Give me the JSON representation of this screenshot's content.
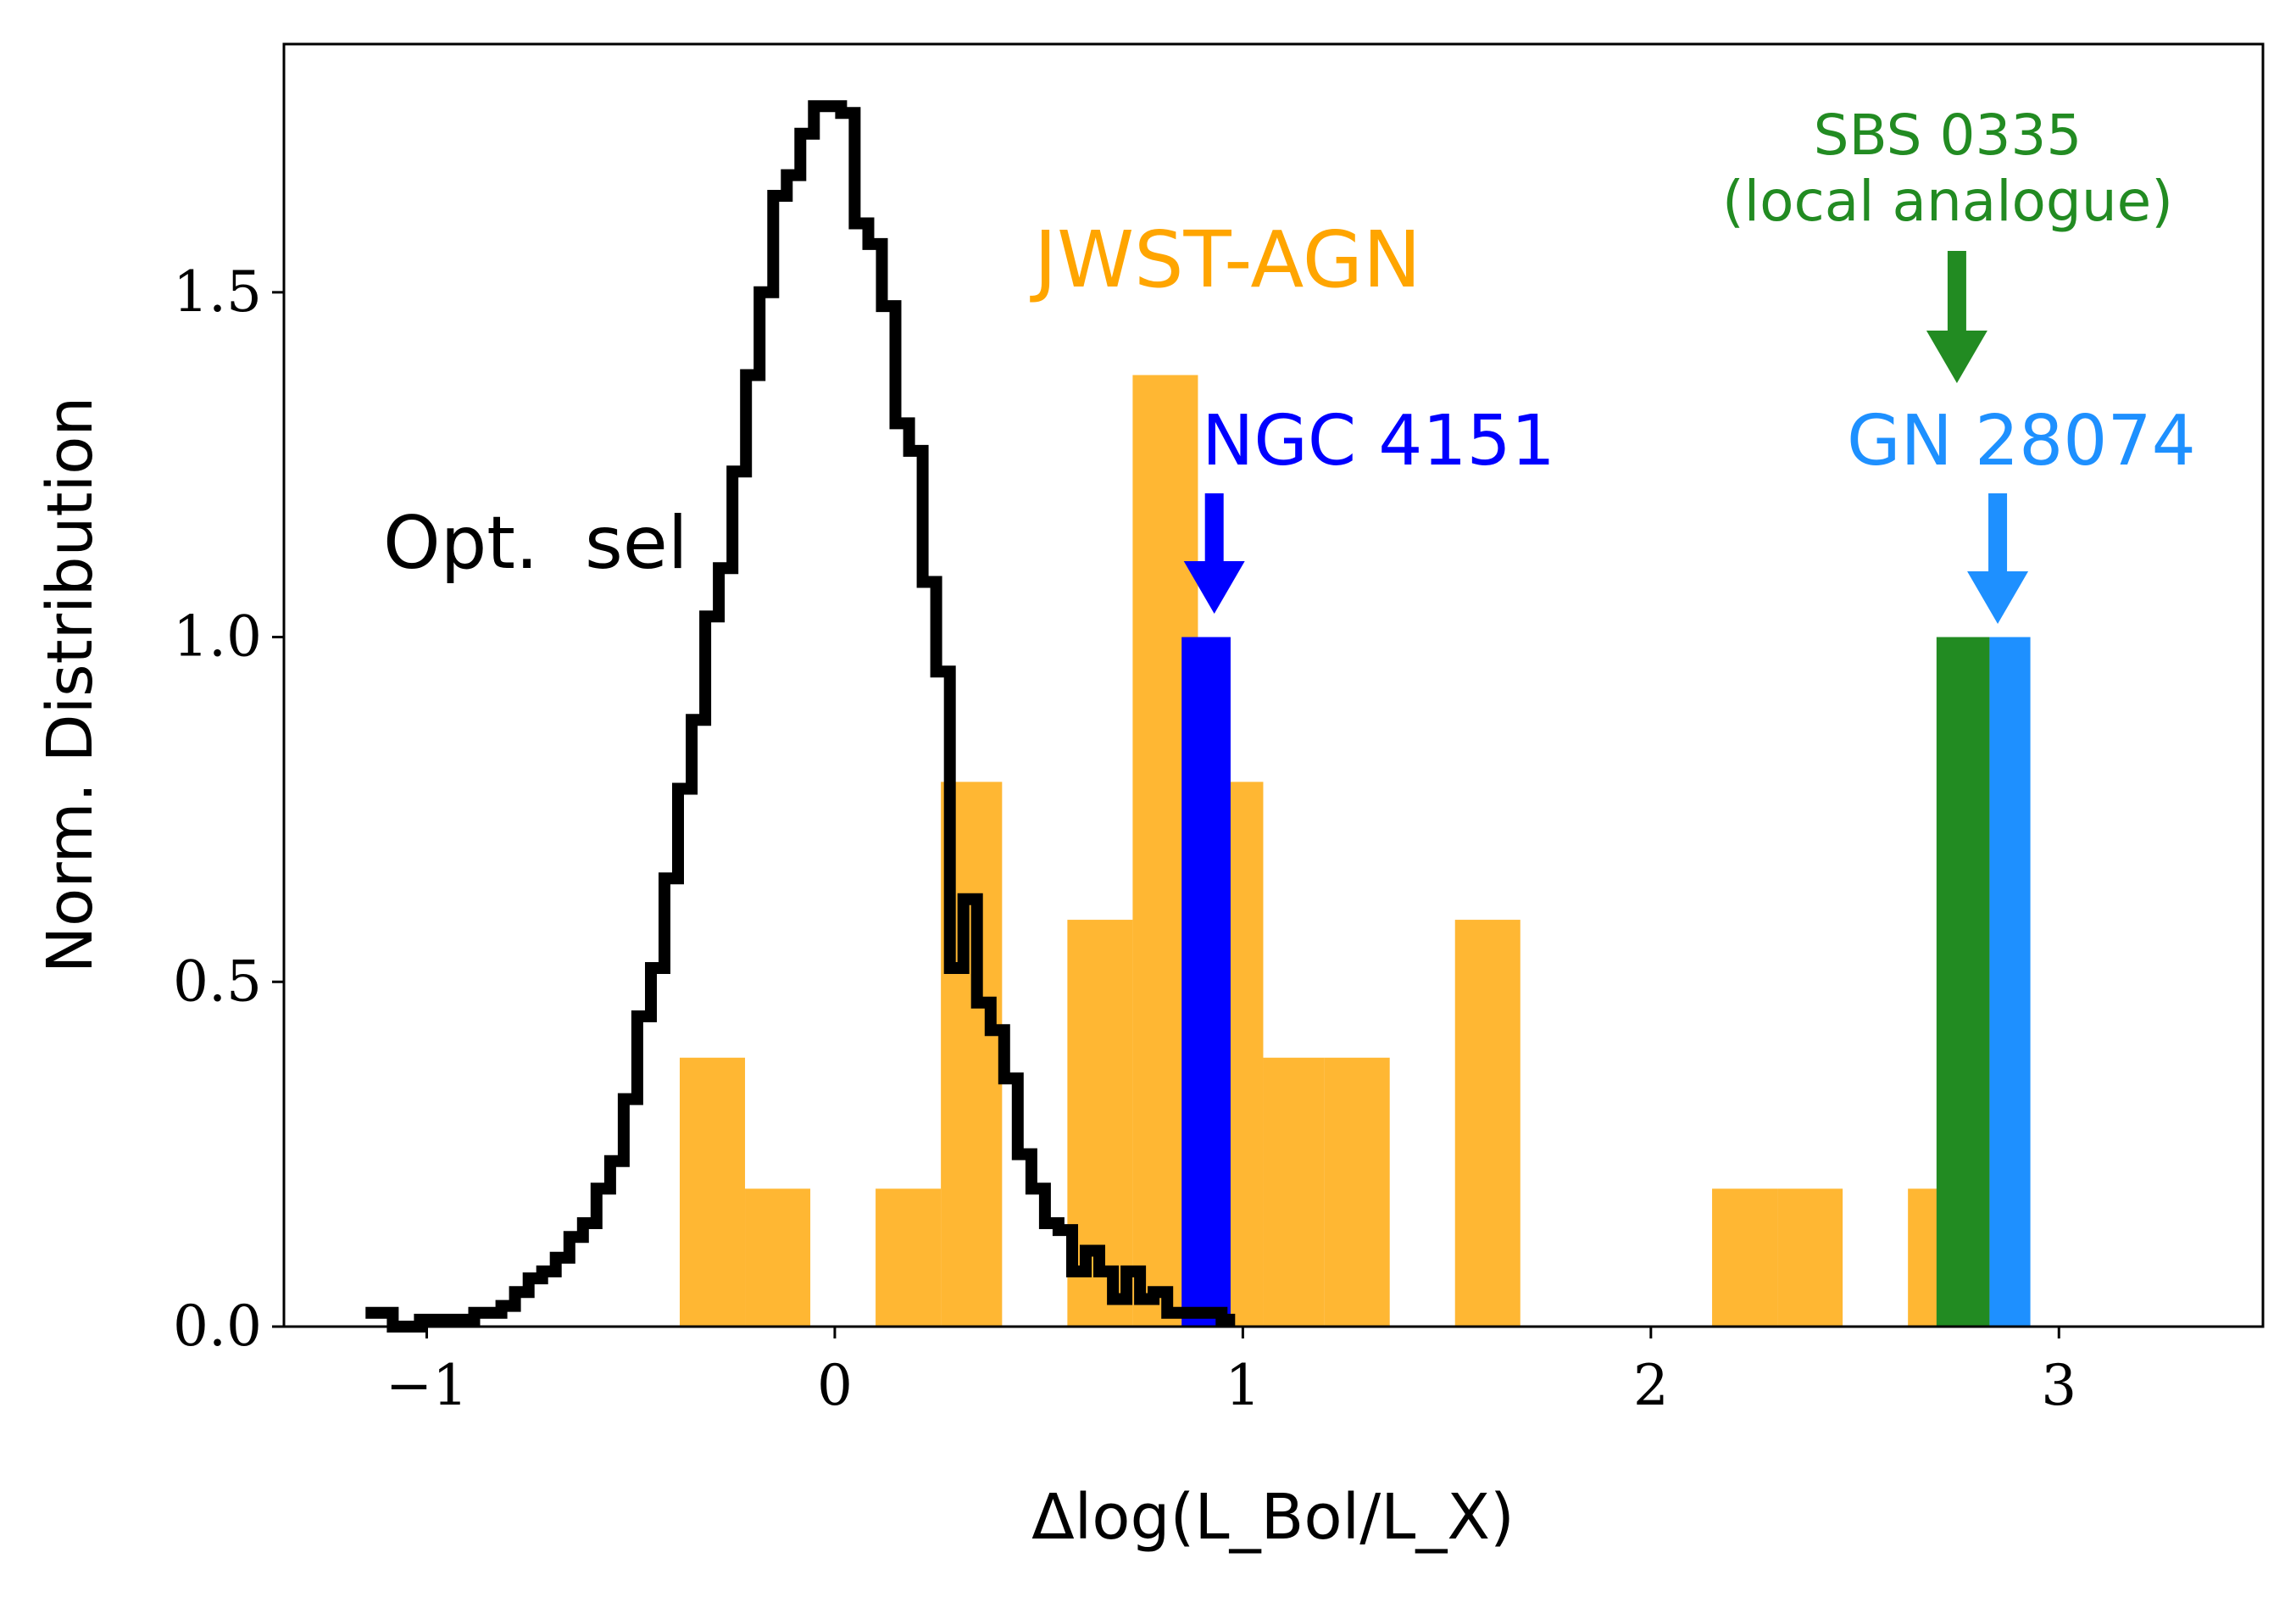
{
  "chart_data": {
    "type": "histogram",
    "xlabel": "Δlog(L_Bol/L_X)",
    "ylabel": "Norm. Distribution",
    "xlim": [
      -1.35,
      3.5
    ],
    "ylim": [
      0.0,
      1.86
    ],
    "xticks": [
      -1,
      0,
      1,
      2,
      3
    ],
    "xtick_labels": [
      "−1",
      "0",
      "1",
      "2",
      "3"
    ],
    "yticks": [
      0.0,
      0.5,
      1.0,
      1.5
    ],
    "ytick_labels": [
      "0.0",
      "0.5",
      "1.0",
      "1.5"
    ],
    "grid": false,
    "legend": "none",
    "colors": {
      "jwst": "#FFA500",
      "opt": "#000000",
      "ngc": "#0000FF",
      "gn": "#1E90FF",
      "sbs": "#228B22"
    },
    "series": [
      {
        "name": "JWST-AGN",
        "style": "filled-bars",
        "color": "#FFA500",
        "opacity": 0.8,
        "bins": [
          {
            "x0": -0.38,
            "x1": -0.22,
            "y": 0.39
          },
          {
            "x0": -0.22,
            "x1": -0.06,
            "y": 0.2
          },
          {
            "x0": 0.1,
            "x1": 0.26,
            "y": 0.2
          },
          {
            "x0": 0.26,
            "x1": 0.41,
            "y": 0.79
          },
          {
            "x0": 0.57,
            "x1": 0.73,
            "y": 0.59
          },
          {
            "x0": 0.73,
            "x1": 0.89,
            "y": 1.38
          },
          {
            "x0": 0.89,
            "x1": 1.05,
            "y": 0.79
          },
          {
            "x0": 1.05,
            "x1": 1.2,
            "y": 0.39
          },
          {
            "x0": 1.2,
            "x1": 1.36,
            "y": 0.39
          },
          {
            "x0": 1.52,
            "x1": 1.68,
            "y": 0.59
          },
          {
            "x0": 2.15,
            "x1": 2.31,
            "y": 0.2
          },
          {
            "x0": 2.31,
            "x1": 2.47,
            "y": 0.2
          },
          {
            "x0": 2.63,
            "x1": 2.79,
            "y": 0.2
          }
        ]
      },
      {
        "name": "Opt. sel",
        "style": "step",
        "color": "#000000",
        "bin_width": 0.0333,
        "x0": -1.15,
        "values": [
          0.02,
          0.02,
          0.0,
          0.0,
          0.01,
          0.01,
          0.01,
          0.01,
          0.02,
          0.02,
          0.03,
          0.05,
          0.07,
          0.08,
          0.1,
          0.13,
          0.15,
          0.2,
          0.24,
          0.33,
          0.45,
          0.52,
          0.65,
          0.78,
          0.88,
          1.03,
          1.1,
          1.24,
          1.38,
          1.5,
          1.64,
          1.67,
          1.73,
          1.77,
          1.77,
          1.76,
          1.6,
          1.57,
          1.48,
          1.31,
          1.27,
          1.08,
          0.95,
          0.52,
          0.62,
          0.47,
          0.43,
          0.36,
          0.25,
          0.2,
          0.15,
          0.14,
          0.08,
          0.11,
          0.08,
          0.04,
          0.08,
          0.04,
          0.05,
          0.02,
          0.02,
          0.02,
          0.02,
          0.01
        ]
      },
      {
        "name": "NGC 4151",
        "style": "filled-bars",
        "color": "#0000FF",
        "bins": [
          {
            "x0": 0.85,
            "x1": 0.97,
            "y": 1.0
          }
        ]
      },
      {
        "name": "SBS 0335",
        "style": "filled-bars",
        "color": "#228B22",
        "bins": [
          {
            "x0": 2.7,
            "x1": 2.83,
            "y": 1.0
          }
        ]
      },
      {
        "name": "GN 28074",
        "style": "filled-bars",
        "color": "#1E90FF",
        "bins": [
          {
            "x0": 2.83,
            "x1": 2.93,
            "y": 1.0
          }
        ]
      }
    ],
    "annotations": {
      "jwst": {
        "text": "JWST-AGN",
        "color": "#FFA500"
      },
      "opt": {
        "text": "Opt.  sel",
        "color": "#000000"
      },
      "ngc": {
        "text": "NGC 4151",
        "color": "#0000FF",
        "arrow_x": 0.93
      },
      "gn": {
        "text": "GN 28074",
        "color": "#1E90FF",
        "arrow_x": 2.85
      },
      "sbs": {
        "line1": "SBS 0335",
        "line2": "(local analogue)",
        "color": "#228B22",
        "arrow_x": 2.75
      }
    }
  }
}
